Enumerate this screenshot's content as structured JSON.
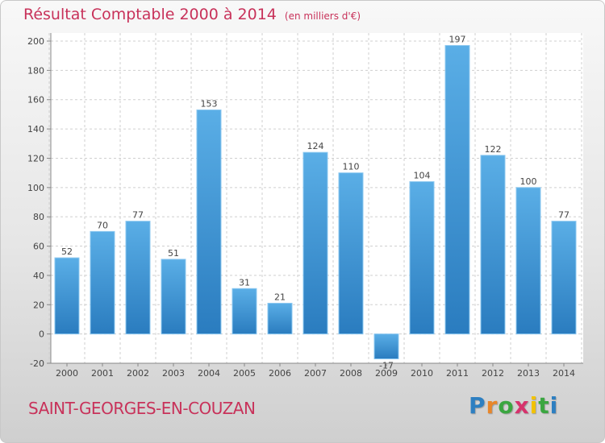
{
  "header": {
    "title": "Résultat Comptable 2000 à 2014",
    "subtitle": "(en milliers d'€)"
  },
  "footer": {
    "municipality": "SAINT-GEORGES-EN-COUZAN",
    "logo_letters": [
      "P",
      "r",
      "o",
      "x",
      "i",
      "t",
      "i"
    ],
    "logo_colors": [
      "#2d7fc1",
      "#e8862a",
      "#3aa640",
      "#d6336c",
      "#f2c200",
      "#3aa640",
      "#2d7fc1"
    ]
  },
  "colors": {
    "bar_light": "#5aaee6",
    "bar_dark": "#2a7cbf",
    "text_accent": "#c8325a",
    "grid": "#cfcfcf"
  },
  "chart_data": {
    "type": "bar",
    "categories": [
      "2000",
      "2001",
      "2002",
      "2003",
      "2004",
      "2005",
      "2006",
      "2007",
      "2008",
      "2009",
      "2010",
      "2011",
      "2012",
      "2013",
      "2014"
    ],
    "values": [
      52,
      70,
      77,
      51,
      153,
      31,
      21,
      124,
      110,
      -17,
      104,
      197,
      122,
      100,
      77
    ],
    "ylim": [
      -20,
      200
    ],
    "yticks": [
      -20,
      0,
      20,
      40,
      60,
      80,
      100,
      120,
      140,
      160,
      180,
      200
    ],
    "grid": true
  }
}
